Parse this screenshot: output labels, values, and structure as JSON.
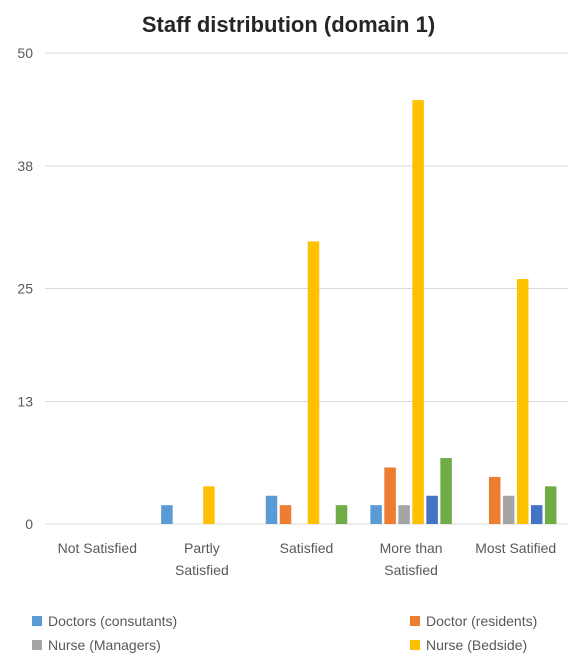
{
  "chart_data": {
    "type": "bar",
    "title": "Staff distribution (domain 1)",
    "xlabel": "",
    "ylabel": "",
    "categories": [
      "Not Satisfied",
      "Partly Satisfied",
      "Satisfied",
      "More than Satisfied",
      "Most Satified"
    ],
    "category_lines": [
      [
        "Not Satisfied"
      ],
      [
        "Partly",
        "Satisfied"
      ],
      [
        "Satisfied"
      ],
      [
        "More than",
        "Satisfied"
      ],
      [
        "Most Satified"
      ]
    ],
    "yticks": [
      0,
      13,
      25,
      38,
      50
    ],
    "ylim": [
      0,
      50
    ],
    "grid": true,
    "legend_position": "bottom",
    "series": [
      {
        "name": "Doctors (consutants)",
        "color": "#5B9BD5",
        "values": [
          0,
          2,
          3,
          2,
          0
        ]
      },
      {
        "name": "Doctor (residents)",
        "color": "#ED7D31",
        "values": [
          0,
          0,
          2,
          6,
          5
        ]
      },
      {
        "name": "Nurse (Managers)",
        "color": "#A5A5A5",
        "values": [
          0,
          0,
          0,
          2,
          3
        ]
      },
      {
        "name": "Nurse (Bedside)",
        "color": "#FFC000",
        "values": [
          0,
          4,
          30,
          45,
          26
        ]
      },
      {
        "name": "",
        "color": "#4472C4",
        "values": [
          0,
          0,
          0,
          3,
          2
        ]
      },
      {
        "name": "",
        "color": "#70AD47",
        "values": [
          0,
          0,
          2,
          7,
          4
        ]
      }
    ]
  }
}
